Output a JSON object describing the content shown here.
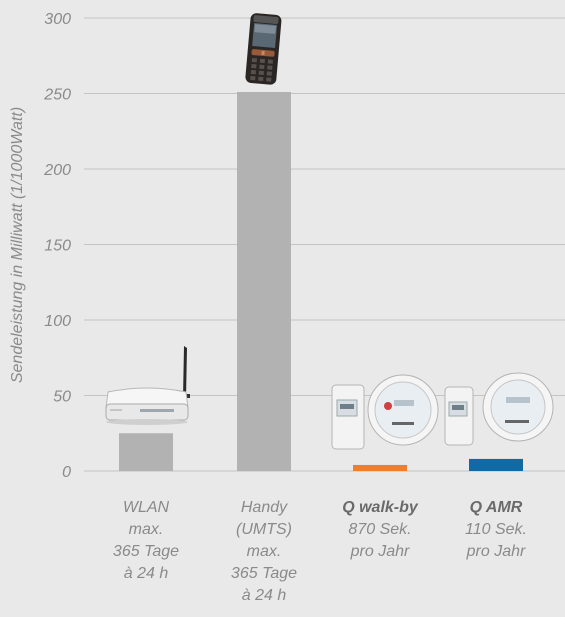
{
  "chart_data": {
    "type": "bar",
    "ylabel": "Sendeleistung in Milliwatt (1/1000Watt)",
    "ylim": [
      0,
      300
    ],
    "yticks": [
      0,
      50,
      100,
      150,
      200,
      250,
      300
    ],
    "grid": true,
    "categories": [
      "WLAN",
      "Handy (UMTS)",
      "Q walk-by",
      "Q AMR"
    ],
    "values": [
      25,
      251,
      4,
      8
    ],
    "bar_colors": [
      "#b2b2b3",
      "#b2b2b3",
      "#f07f2d",
      "#0f6aa8"
    ],
    "category_labels": [
      {
        "title": "WLAN",
        "lines": [
          "max.",
          "365 Tage",
          "à 24 h"
        ]
      },
      {
        "title": "Handy",
        "lines": [
          "(UMTS)",
          "max.",
          "365 Tage",
          "à 24 h"
        ]
      },
      {
        "title": "Q walk-by",
        "lines": [
          "870 Sek.",
          "pro Jahr"
        ]
      },
      {
        "title": "Q AMR",
        "lines": [
          "110 Sek.",
          "pro Jahr"
        ]
      }
    ]
  },
  "colors": {
    "background": "#e9e9e9",
    "bar_default": "#b2b2b3",
    "accent_orange": "#f07f2d",
    "accent_blue": "#0f6aa8",
    "grid": "#c4c4c4"
  },
  "icons": [
    "wlan-router-icon",
    "mobile-phone-icon",
    "q-walk-by-meter-icon",
    "q-amr-meter-icon"
  ]
}
